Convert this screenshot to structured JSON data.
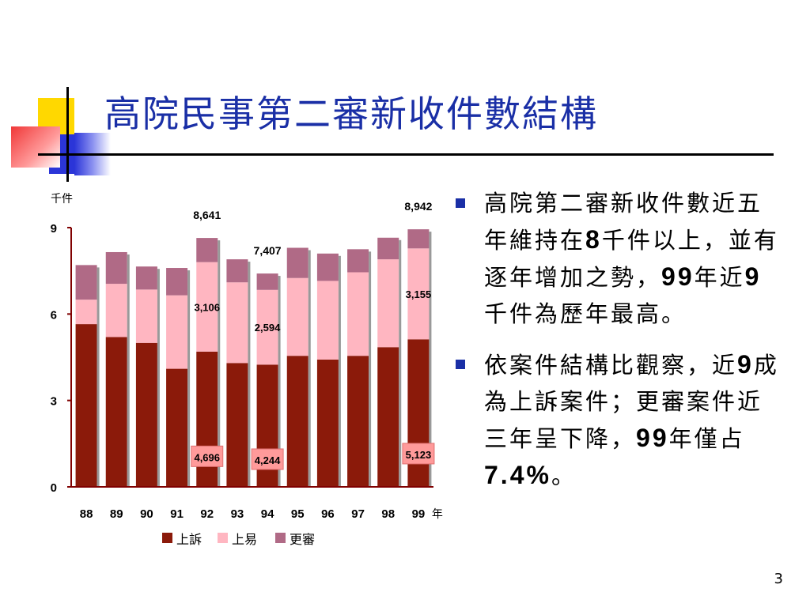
{
  "title": "高院民事第二審新收件數結構",
  "page_number": "3",
  "colors": {
    "appeal": "#8b1a0a",
    "easy": "#ffb6c1",
    "retrial": "#b06a86",
    "title": "#1a2fa6",
    "deco_yellow": "#ffd800",
    "deco_blue": "#2b35d8",
    "deco_red": "#f03838"
  },
  "bullets": [
    {
      "parts": [
        "高院第二審新收件數近五年維持在",
        "8",
        "千件以上，並有逐年增加之勢，",
        "99",
        "年近",
        "9",
        "千件為歷年最高。"
      ],
      "bold": [
        false,
        true,
        false,
        true,
        false,
        true,
        false
      ]
    },
    {
      "parts": [
        "依案件結構比觀察，近",
        "9",
        "成為上訴案件；更審案件近三年呈下降，",
        "99",
        "年僅占",
        "7.4%",
        "。"
      ],
      "bold": [
        false,
        true,
        false,
        true,
        false,
        true,
        false
      ]
    }
  ],
  "chart_data": {
    "type": "bar",
    "stacked": true,
    "ylabel": "千件",
    "ylim": [
      0,
      9
    ],
    "yticks": [
      "0",
      "3",
      "6",
      "9"
    ],
    "categories": [
      "88",
      "89",
      "90",
      "91",
      "92",
      "93",
      "94",
      "95",
      "96",
      "97",
      "98",
      "99"
    ],
    "xlabel": "年",
    "series": [
      {
        "name": "上訴",
        "values": [
          5.65,
          5.2,
          5.0,
          4.1,
          4.696,
          4.3,
          4.244,
          4.55,
          4.42,
          4.55,
          4.85,
          5.123
        ]
      },
      {
        "name": "上易",
        "values": [
          0.85,
          1.85,
          1.85,
          2.55,
          3.106,
          2.8,
          2.594,
          2.7,
          2.73,
          2.9,
          3.05,
          3.155
        ]
      },
      {
        "name": "更審",
        "values": [
          1.2,
          1.1,
          0.8,
          0.95,
          0.839,
          0.8,
          0.569,
          1.05,
          0.95,
          0.8,
          0.75,
          0.664
        ]
      }
    ],
    "totals": [
      {
        "index": 4,
        "label": "8,641"
      },
      {
        "index": 6,
        "label": "7,407"
      },
      {
        "index": 11,
        "label": "8,942"
      }
    ],
    "data_labels": [
      {
        "index": 4,
        "series": 0,
        "label": "4,696",
        "boxed": true
      },
      {
        "index": 4,
        "series": 1,
        "label": "3,106",
        "boxed": false
      },
      {
        "index": 6,
        "series": 0,
        "label": "4,244",
        "boxed": true
      },
      {
        "index": 6,
        "series": 1,
        "label": "2,594",
        "boxed": false
      },
      {
        "index": 11,
        "series": 0,
        "label": "5,123",
        "boxed": true
      },
      {
        "index": 11,
        "series": 1,
        "label": "3,155",
        "boxed": false
      }
    ],
    "legend_position": "bottom",
    "grid": false
  }
}
